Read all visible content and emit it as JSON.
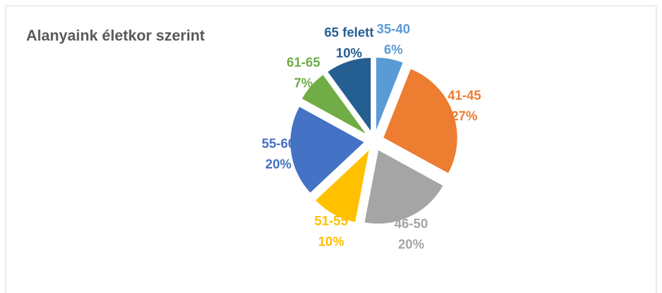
{
  "chart_data": {
    "type": "pie",
    "title": "Alanyaink életkor szerint",
    "categories": [
      "35-40",
      "41-45",
      "46-50",
      "51-55",
      "55-60",
      "61-65",
      "65 felett"
    ],
    "values": [
      6,
      27,
      20,
      10,
      20,
      7,
      10
    ],
    "value_labels": [
      "6%",
      "27%",
      "20%",
      "10%",
      "20%",
      "7%",
      "10%"
    ],
    "colors": [
      "#5b9bd5",
      "#ed7d31",
      "#a5a5a5",
      "#ffc000",
      "#4472c4",
      "#70ad47",
      "#255e91"
    ]
  }
}
